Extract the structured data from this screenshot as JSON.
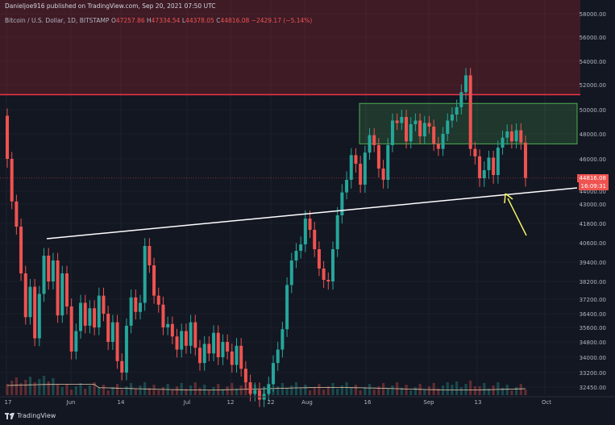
{
  "header": {
    "published": "Danieljoe916 published on TradingView.com, Sep 20, 2021 07:50 UTC",
    "symbol": "Bitcoin / U.S. Dollar, 1D, BITSTAMP",
    "open_label": "O",
    "open": "47257.86",
    "high_label": "H",
    "high": "47334.54",
    "low_label": "L",
    "low": "44378.05",
    "close_label": "C",
    "close": "44816.08",
    "change": "−2429.17 (−5.14%)"
  },
  "price_tag": {
    "price": "44816.08",
    "countdown": "16:09:31"
  },
  "footer": {
    "brand": "TradingView"
  },
  "colors": {
    "up": "#26a69a",
    "down": "#ef5350",
    "resistance": "#f23645",
    "support": "#ffffff",
    "arrow": "#f5f566",
    "range_box": "#4caf50"
  },
  "chart_data": {
    "type": "candlestick",
    "y_axis_labels": [
      "58000.00",
      "56000.00",
      "54000.00",
      "52000.00",
      "50000.00",
      "48000.00",
      "46000.00",
      "44000.00",
      "43000.00",
      "41800.00",
      "40600.00",
      "39400.00",
      "38200.00",
      "37200.00",
      "36400.00",
      "35600.00",
      "34800.00",
      "34000.00",
      "33200.00",
      "32450.00"
    ],
    "x_axis_labels": [
      "17",
      "Jun",
      "14",
      "Jul",
      "12",
      "22",
      "Aug",
      "16",
      "Sep",
      "13",
      "Oct"
    ],
    "resistance_zone": [
      51200,
      58500
    ],
    "range_box": [
      47200,
      50500
    ],
    "trendline": "rising support from early June to Sep",
    "arrow": "pointing to trendline near current price",
    "series": [
      {
        "o": 49500,
        "c": 46000
      },
      {
        "o": 46000,
        "c": 43200
      },
      {
        "o": 43200,
        "c": 41600
      },
      {
        "o": 41600,
        "c": 38700
      },
      {
        "o": 38700,
        "c": 36200
      },
      {
        "o": 36200,
        "c": 37900
      },
      {
        "o": 37900,
        "c": 35000
      },
      {
        "o": 35000,
        "c": 37500
      },
      {
        "o": 37500,
        "c": 39800
      },
      {
        "o": 39800,
        "c": 38200
      },
      {
        "o": 38200,
        "c": 39500
      },
      {
        "o": 39500,
        "c": 36300
      },
      {
        "o": 36300,
        "c": 38700
      },
      {
        "o": 38700,
        "c": 36800
      },
      {
        "o": 36800,
        "c": 34300
      },
      {
        "o": 34300,
        "c": 35400
      },
      {
        "o": 35400,
        "c": 37000
      },
      {
        "o": 37000,
        "c": 35700
      },
      {
        "o": 35700,
        "c": 36700
      },
      {
        "o": 36700,
        "c": 35600
      },
      {
        "o": 35600,
        "c": 37400
      },
      {
        "o": 37400,
        "c": 36400
      },
      {
        "o": 36400,
        "c": 34800
      },
      {
        "o": 34800,
        "c": 35900
      },
      {
        "o": 35900,
        "c": 33800
      },
      {
        "o": 33800,
        "c": 33200
      },
      {
        "o": 33200,
        "c": 35700
      },
      {
        "o": 35700,
        "c": 37300
      },
      {
        "o": 37300,
        "c": 36500
      },
      {
        "o": 36500,
        "c": 37000
      },
      {
        "o": 37000,
        "c": 40400
      },
      {
        "o": 40400,
        "c": 39200
      },
      {
        "o": 39200,
        "c": 37400
      },
      {
        "o": 37400,
        "c": 36900
      },
      {
        "o": 36900,
        "c": 35600
      },
      {
        "o": 35600,
        "c": 35800
      },
      {
        "o": 35800,
        "c": 35100
      },
      {
        "o": 35100,
        "c": 34400
      },
      {
        "o": 34400,
        "c": 35400
      },
      {
        "o": 35400,
        "c": 34600
      },
      {
        "o": 34600,
        "c": 35900
      },
      {
        "o": 35900,
        "c": 34500
      },
      {
        "o": 34500,
        "c": 33700
      },
      {
        "o": 33700,
        "c": 34700
      },
      {
        "o": 34700,
        "c": 34200
      },
      {
        "o": 34200,
        "c": 35300
      },
      {
        "o": 35300,
        "c": 34000
      },
      {
        "o": 34000,
        "c": 34800
      },
      {
        "o": 34800,
        "c": 34300
      },
      {
        "o": 34300,
        "c": 33600
      },
      {
        "o": 33600,
        "c": 34600
      },
      {
        "o": 34600,
        "c": 33400
      },
      {
        "o": 33400,
        "c": 32700
      },
      {
        "o": 32700,
        "c": 32100
      },
      {
        "o": 32100,
        "c": 32300
      },
      {
        "o": 32300,
        "c": 31800
      },
      {
        "o": 31800,
        "c": 32100
      },
      {
        "o": 32100,
        "c": 32600
      },
      {
        "o": 32600,
        "c": 33700
      },
      {
        "o": 33700,
        "c": 34400
      },
      {
        "o": 34400,
        "c": 35500
      },
      {
        "o": 35500,
        "c": 38000
      },
      {
        "o": 38000,
        "c": 39500
      },
      {
        "o": 39500,
        "c": 40100
      },
      {
        "o": 40100,
        "c": 40500
      },
      {
        "o": 40500,
        "c": 42100
      },
      {
        "o": 42100,
        "c": 41400
      },
      {
        "o": 41400,
        "c": 40200
      },
      {
        "o": 40200,
        "c": 39000
      },
      {
        "o": 39000,
        "c": 38300
      },
      {
        "o": 38300,
        "c": 38200
      },
      {
        "o": 38200,
        "c": 40200
      },
      {
        "o": 40200,
        "c": 42300
      },
      {
        "o": 42300,
        "c": 43900
      },
      {
        "o": 43900,
        "c": 44700
      },
      {
        "o": 44700,
        "c": 46300
      },
      {
        "o": 46300,
        "c": 45700
      },
      {
        "o": 45700,
        "c": 44400
      },
      {
        "o": 44400,
        "c": 46500
      },
      {
        "o": 46500,
        "c": 47900
      },
      {
        "o": 47900,
        "c": 47100
      },
      {
        "o": 47100,
        "c": 45400
      },
      {
        "o": 45400,
        "c": 44700
      },
      {
        "o": 44700,
        "c": 47100
      },
      {
        "o": 47100,
        "c": 49100
      },
      {
        "o": 49100,
        "c": 48900
      },
      {
        "o": 48900,
        "c": 49400
      },
      {
        "o": 49400,
        "c": 47400
      },
      {
        "o": 47400,
        "c": 48800
      },
      {
        "o": 48800,
        "c": 49100
      },
      {
        "o": 49100,
        "c": 47800
      },
      {
        "o": 47800,
        "c": 48900
      },
      {
        "o": 48900,
        "c": 48600
      },
      {
        "o": 48600,
        "c": 47200
      },
      {
        "o": 47200,
        "c": 46800
      },
      {
        "o": 46800,
        "c": 48000
      },
      {
        "o": 48000,
        "c": 49100
      },
      {
        "o": 49100,
        "c": 49600
      },
      {
        "o": 49600,
        "c": 50200
      },
      {
        "o": 50200,
        "c": 51400
      },
      {
        "o": 51400,
        "c": 52800
      },
      {
        "o": 52800,
        "c": 46800
      },
      {
        "o": 46800,
        "c": 46200
      },
      {
        "o": 46200,
        "c": 44800
      },
      {
        "o": 44800,
        "c": 45300
      },
      {
        "o": 45300,
        "c": 46100
      },
      {
        "o": 46100,
        "c": 45000
      },
      {
        "o": 45000,
        "c": 46900
      },
      {
        "o": 46900,
        "c": 47700
      },
      {
        "o": 47700,
        "c": 48200
      },
      {
        "o": 48200,
        "c": 47400
      },
      {
        "o": 47400,
        "c": 48300
      },
      {
        "o": 48300,
        "c": 47300
      },
      {
        "o": 47300,
        "c": 44816
      }
    ]
  }
}
